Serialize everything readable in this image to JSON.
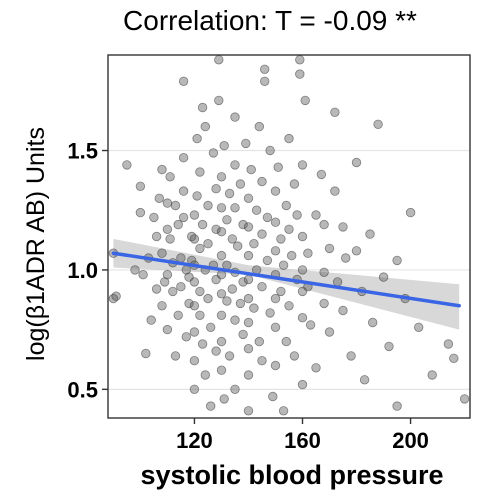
{
  "chart_data": {
    "type": "scatter",
    "title": "Correlation: T = -0.09 **",
    "xlabel": "systolic blood pressure",
    "ylabel": "log(β1ADR AB) Units",
    "xlim": [
      88,
      222
    ],
    "ylim": [
      0.38,
      1.9
    ],
    "xticks": [
      120,
      160,
      200
    ],
    "yticks": [
      0.5,
      1.0,
      1.5
    ],
    "xtick_labels": [
      "120",
      "160",
      "200"
    ],
    "ytick_labels": [
      "0.5",
      "1.0",
      "1.5"
    ],
    "grid": true,
    "colors": {
      "points": "#555555",
      "trend": "#3a66e6",
      "band": "#c8c8c8",
      "frame": "#333333",
      "gridline": "#e5e5e5"
    },
    "trend": {
      "x": [
        90,
        218
      ],
      "y": [
        1.07,
        0.85
      ]
    },
    "band": {
      "x": [
        90,
        140,
        218
      ],
      "lower": [
        1.01,
        0.98,
        0.75
      ],
      "upper": [
        1.13,
        1.02,
        0.94
      ]
    },
    "points": [
      [
        90,
        1.07
      ],
      [
        90,
        0.88
      ],
      [
        91,
        0.89
      ],
      [
        95,
        1.44
      ],
      [
        98,
        1.0
      ],
      [
        100,
        1.35
      ],
      [
        100,
        1.24
      ],
      [
        101,
        0.98
      ],
      [
        102,
        0.65
      ],
      [
        103,
        1.05
      ],
      [
        104,
        0.79
      ],
      [
        105,
        1.22
      ],
      [
        106,
        1.14
      ],
      [
        106,
        0.92
      ],
      [
        107,
        1.3
      ],
      [
        108,
        1.42
      ],
      [
        108,
        1.07
      ],
      [
        108,
        0.85
      ],
      [
        109,
        0.95
      ],
      [
        110,
        1.28
      ],
      [
        110,
        1.17
      ],
      [
        110,
        0.98
      ],
      [
        110,
        0.75
      ],
      [
        111,
        1.39
      ],
      [
        111,
        1.13
      ],
      [
        112,
        1.03
      ],
      [
        112,
        0.91
      ],
      [
        113,
        1.27
      ],
      [
        113,
        0.64
      ],
      [
        114,
        1.19
      ],
      [
        114,
        0.81
      ],
      [
        115,
        1.05
      ],
      [
        115,
        0.93
      ],
      [
        116,
        1.79
      ],
      [
        116,
        1.47
      ],
      [
        116,
        1.22
      ],
      [
        116,
        1.33
      ],
      [
        117,
        1.0
      ],
      [
        117,
        0.72
      ],
      [
        118,
        0.97
      ],
      [
        118,
        0.86
      ],
      [
        119,
        1.14
      ],
      [
        119,
        1.04
      ],
      [
        120,
        1.23
      ],
      [
        120,
        1.13
      ],
      [
        120,
        1.02
      ],
      [
        120,
        0.95
      ],
      [
        120,
        0.85
      ],
      [
        120,
        0.74
      ],
      [
        120,
        0.62
      ],
      [
        120,
        0.5
      ],
      [
        121,
        1.55
      ],
      [
        121,
        1.31
      ],
      [
        122,
        1.41
      ],
      [
        122,
        1.09
      ],
      [
        122,
        0.91
      ],
      [
        122,
        0.81
      ],
      [
        123,
        1.19
      ],
      [
        123,
        1.68
      ],
      [
        123,
        0.69
      ],
      [
        124,
        1.6
      ],
      [
        124,
        1.0
      ],
      [
        124,
        0.56
      ],
      [
        125,
        1.27
      ],
      [
        125,
        1.11
      ],
      [
        125,
        0.88
      ],
      [
        126,
        0.76
      ],
      [
        126,
        0.43
      ],
      [
        127,
        1.49
      ],
      [
        127,
        1.02
      ],
      [
        128,
        1.34
      ],
      [
        128,
        1.17
      ],
      [
        128,
        0.96
      ],
      [
        128,
        0.66
      ],
      [
        129,
        1.88
      ],
      [
        129,
        1.71
      ],
      [
        130,
        1.39
      ],
      [
        130,
        1.26
      ],
      [
        130,
        1.16
      ],
      [
        130,
        1.06
      ],
      [
        130,
        0.98
      ],
      [
        130,
        0.9
      ],
      [
        130,
        0.81
      ],
      [
        130,
        0.7
      ],
      [
        130,
        0.58
      ],
      [
        131,
        1.52
      ],
      [
        131,
        0.46
      ],
      [
        132,
        1.21
      ],
      [
        132,
        1.02
      ],
      [
        132,
        0.87
      ],
      [
        133,
        1.32
      ],
      [
        133,
        0.64
      ],
      [
        134,
        1.13
      ],
      [
        134,
        0.92
      ],
      [
        135,
        1.64
      ],
      [
        135,
        1.44
      ],
      [
        135,
        1.26
      ],
      [
        135,
        0.99
      ],
      [
        135,
        0.79
      ],
      [
        135,
        0.5
      ],
      [
        136,
        1.1
      ],
      [
        137,
        1.36
      ],
      [
        137,
        0.86
      ],
      [
        138,
        1.19
      ],
      [
        138,
        0.95
      ],
      [
        138,
        0.73
      ],
      [
        139,
        1.53
      ],
      [
        140,
        1.3
      ],
      [
        140,
        1.18
      ],
      [
        140,
        1.06
      ],
      [
        140,
        0.96
      ],
      [
        140,
        0.88
      ],
      [
        140,
        0.78
      ],
      [
        140,
        0.67
      ],
      [
        140,
        0.56
      ],
      [
        140,
        0.41
      ],
      [
        141,
        1.42
      ],
      [
        142,
        1.11
      ],
      [
        142,
        0.84
      ],
      [
        143,
        1.25
      ],
      [
        143,
        1.0
      ],
      [
        144,
        1.6
      ],
      [
        144,
        0.7
      ],
      [
        145,
        1.37
      ],
      [
        145,
        1.15
      ],
      [
        145,
        0.93
      ],
      [
        145,
        0.62
      ],
      [
        146,
        1.84
      ],
      [
        146,
        1.79
      ],
      [
        147,
        1.22
      ],
      [
        147,
        1.04
      ],
      [
        148,
        1.5
      ],
      [
        148,
        0.82
      ],
      [
        149,
        0.47
      ],
      [
        150,
        1.33
      ],
      [
        150,
        1.2
      ],
      [
        150,
        1.08
      ],
      [
        150,
        0.98
      ],
      [
        150,
        0.88
      ],
      [
        150,
        0.76
      ],
      [
        150,
        0.6
      ],
      [
        151,
        1.43
      ],
      [
        152,
        1.13
      ],
      [
        152,
        0.91
      ],
      [
        153,
        1.02
      ],
      [
        153,
        0.41
      ],
      [
        154,
        1.27
      ],
      [
        154,
        0.7
      ],
      [
        155,
        1.55
      ],
      [
        155,
        1.17
      ],
      [
        155,
        0.85
      ],
      [
        156,
        1.06
      ],
      [
        157,
        1.36
      ],
      [
        157,
        0.64
      ],
      [
        158,
        1.23
      ],
      [
        158,
        0.96
      ],
      [
        159,
        1.88
      ],
      [
        159,
        1.82
      ],
      [
        160,
        1.44
      ],
      [
        160,
        1.14
      ],
      [
        160,
        1.0
      ],
      [
        160,
        0.91
      ],
      [
        160,
        0.8
      ],
      [
        160,
        0.52
      ],
      [
        161,
        1.71
      ],
      [
        162,
        1.07
      ],
      [
        162,
        0.93
      ],
      [
        163,
        0.77
      ],
      [
        165,
        1.23
      ],
      [
        165,
        0.59
      ],
      [
        167,
        1.4
      ],
      [
        168,
        1.19
      ],
      [
        168,
        0.99
      ],
      [
        168,
        0.86
      ],
      [
        170,
        1.09
      ],
      [
        170,
        0.74
      ],
      [
        172,
        1.66
      ],
      [
        172,
        1.33
      ],
      [
        173,
        0.95
      ],
      [
        175,
        1.18
      ],
      [
        175,
        0.83
      ],
      [
        176,
        1.05
      ],
      [
        178,
        0.64
      ],
      [
        180,
        1.08
      ],
      [
        180,
        1.45
      ],
      [
        182,
        0.91
      ],
      [
        183,
        0.54
      ],
      [
        185,
        1.15
      ],
      [
        186,
        0.78
      ],
      [
        188,
        1.61
      ],
      [
        190,
        0.97
      ],
      [
        192,
        0.68
      ],
      [
        195,
        1.04
      ],
      [
        195,
        0.43
      ],
      [
        198,
        0.88
      ],
      [
        200,
        1.24
      ],
      [
        203,
        0.76
      ],
      [
        208,
        0.56
      ],
      [
        214,
        0.69
      ],
      [
        216,
        0.63
      ],
      [
        220,
        0.46
      ]
    ]
  }
}
